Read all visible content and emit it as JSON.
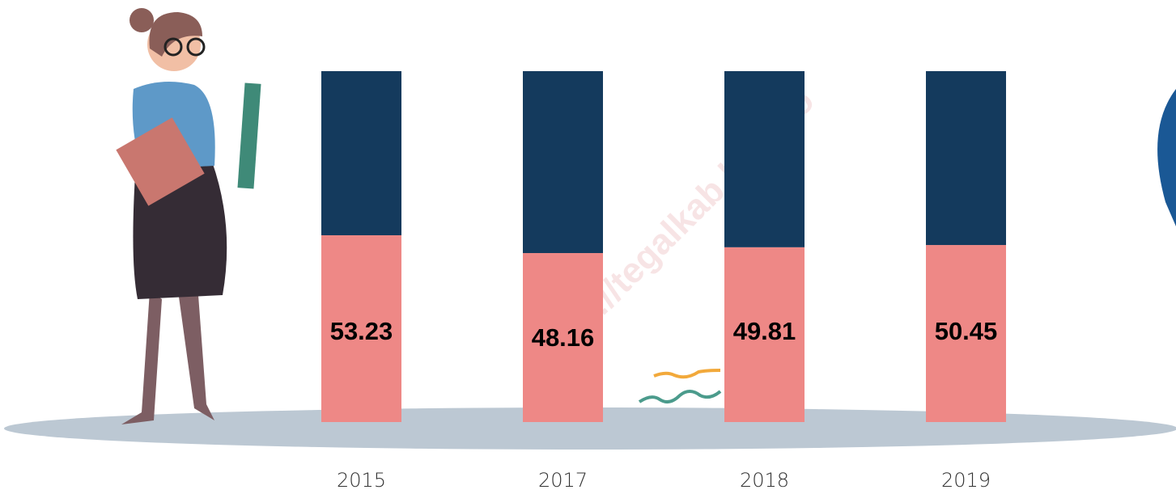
{
  "chart_data": {
    "type": "bar",
    "stacked": true,
    "categories": [
      "2015",
      "2017",
      "2018",
      "2019"
    ],
    "series": [
      {
        "color": "#ee8886",
        "values": [
          53.23,
          48.16,
          49.81,
          50.45
        ],
        "show_values": true
      },
      {
        "color": "#143a5d",
        "values": [
          46.77,
          51.84,
          50.19,
          49.55
        ],
        "show_values": false
      }
    ],
    "ylim": [
      0,
      100
    ],
    "watermark": "https://tegalkab.bps.go"
  }
}
